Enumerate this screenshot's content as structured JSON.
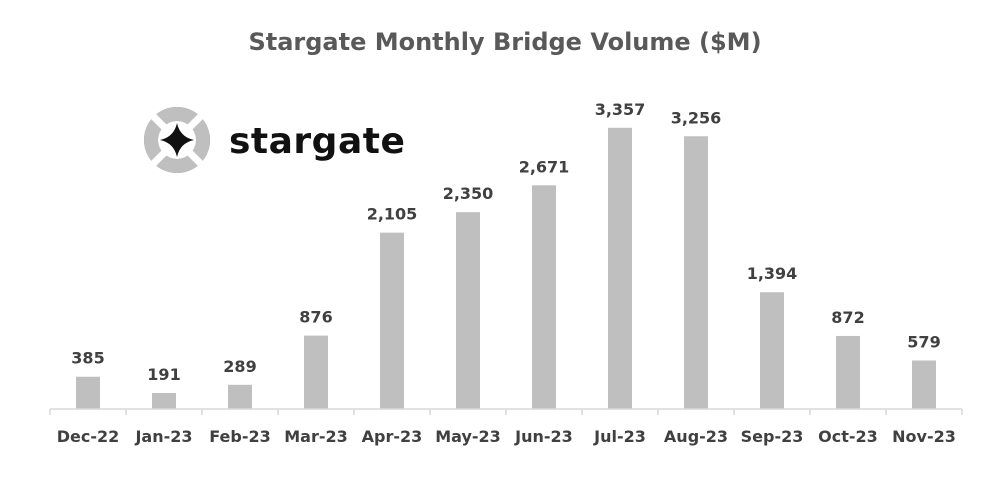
{
  "chart_data": {
    "type": "bar",
    "title": "Stargate Monthly Bridge Volume ($M)",
    "xlabel": "",
    "ylabel": "",
    "categories": [
      "Dec-22",
      "Jan-23",
      "Feb-23",
      "Mar-23",
      "Apr-23",
      "May-23",
      "Jun-23",
      "Jul-23",
      "Aug-23",
      "Sep-23",
      "Oct-23",
      "Nov-23"
    ],
    "values": [
      385,
      191,
      289,
      876,
      2105,
      2350,
      2671,
      3357,
      3256,
      1394,
      872,
      579
    ],
    "value_labels": [
      "385",
      "191",
      "289",
      "876",
      "2,105",
      "2,350",
      "2,671",
      "3,357",
      "3,256",
      "1,394",
      "872",
      "579"
    ],
    "ylim": [
      0,
      3450
    ],
    "grid": false,
    "legend": "none",
    "bar_color": "#bfbfbf",
    "axis_color": "#d9d9d9",
    "text_color": "#404040"
  },
  "logo": {
    "wordmark": "stargate",
    "icon": "stargate-star-icon"
  }
}
